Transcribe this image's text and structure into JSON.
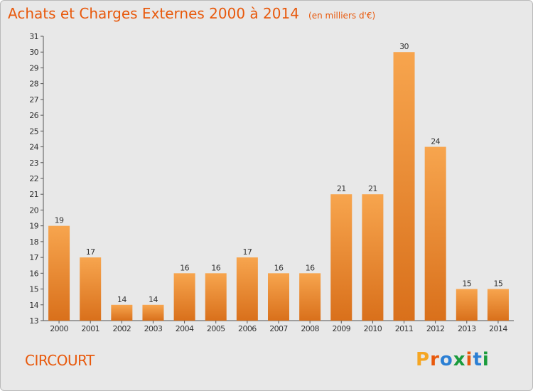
{
  "title": "Achats et Charges Externes 2000 à 2014",
  "unit_note": "(en milliers d'€)",
  "commune": "CIRCOURT",
  "logo": {
    "text": "Proxiti",
    "letters": [
      "P",
      "r",
      "o",
      "x",
      "i",
      "t",
      "i"
    ],
    "colors": [
      "#f5a623",
      "#e8590c",
      "#2b7fd4",
      "#1a9b3c",
      "#e8590c",
      "#2b7fd4",
      "#1a9b3c"
    ]
  },
  "colors": {
    "bar_light": "#f7a54e",
    "bar_dark": "#d9701b",
    "axis": "#555555",
    "grid": "#ffffff",
    "title": "#e8590c"
  },
  "chart_data": {
    "type": "bar",
    "title": "Achats et Charges Externes 2000 à 2014",
    "subtitle": "(en milliers d'€)",
    "categories": [
      "2000",
      "2001",
      "2002",
      "2003",
      "2004",
      "2005",
      "2006",
      "2007",
      "2008",
      "2009",
      "2010",
      "2011",
      "2012",
      "2013",
      "2014"
    ],
    "values": [
      19,
      17,
      14,
      14,
      16,
      16,
      17,
      16,
      16,
      21,
      21,
      30,
      24,
      15,
      15
    ],
    "ylim": [
      13,
      31
    ],
    "yticks": [
      13,
      14,
      15,
      16,
      17,
      18,
      19,
      20,
      21,
      22,
      23,
      24,
      25,
      26,
      27,
      28,
      29,
      30,
      31
    ],
    "data_labels": true,
    "grid": false
  }
}
